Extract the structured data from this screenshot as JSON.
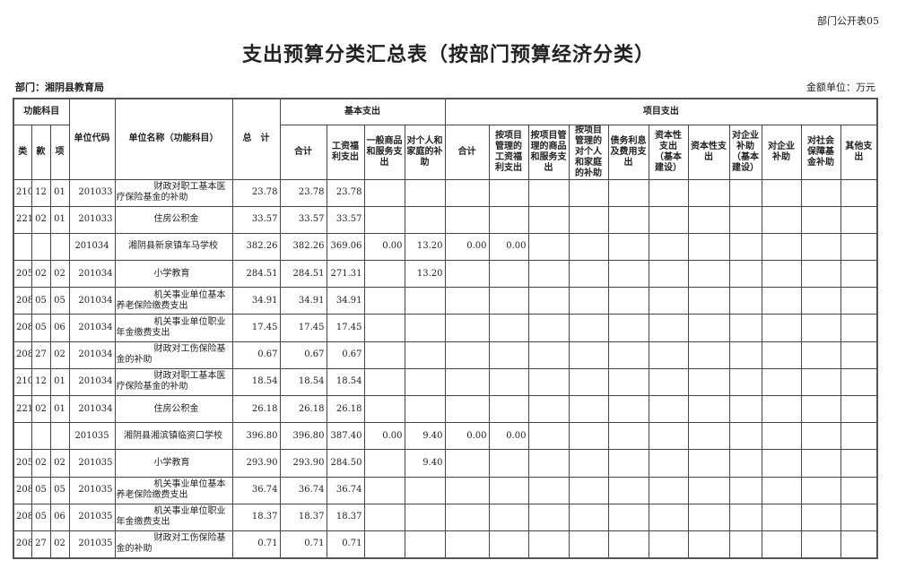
{
  "corner_label": "部门公开表05",
  "title": "支出预算分类汇总表（按部门预算经济分类）",
  "department": "部门：湘阴县教育局",
  "unit": "金额单位：万元",
  "headers": {
    "func_subject": "功能科目",
    "lei": "类",
    "kuan": "款",
    "xiang": "项",
    "unit_code": "单位代码",
    "unit_name": "单位名称（功能科目）",
    "total": "总　计",
    "basic": "基本支出",
    "project": "项目支出",
    "basic_cols": [
      "合计",
      "工资福利支出",
      "一般商品和服务支出",
      "对个人和家庭的补助"
    ],
    "project_cols": [
      "合计",
      "按项目管理的工资福利支出",
      "按项目管理的商品和服务支出",
      "按项目管理的对个人和家庭的补助",
      "债务利息及费用支出",
      "资本性支出（基本建设）",
      "资本性支出",
      "对企业补助（基本建设）",
      "对企业补助",
      "对社会保障基金补助",
      "其他支出"
    ]
  },
  "rows": [
    {
      "lei": "210",
      "kuan": "12",
      "xiang": "01",
      "code": "201033",
      "name": "财政对职工基本医疗保险基金的补助",
      "total": "23.78",
      "b_total": "23.78",
      "b_wage": "23.78",
      "b_goods": "",
      "b_personal": "",
      "p_total": "",
      "p_wage": ""
    },
    {
      "lei": "221",
      "kuan": "02",
      "xiang": "01",
      "code": "201033",
      "name": "住房公积金",
      "total": "33.57",
      "b_total": "33.57",
      "b_wage": "33.57",
      "b_goods": "",
      "b_personal": "",
      "p_total": "",
      "p_wage": ""
    },
    {
      "lei": "",
      "kuan": "",
      "xiang": "",
      "code": "201034",
      "name": "湘阴县新泉镇车马学校",
      "total": "382.26",
      "b_total": "382.26",
      "b_wage": "369.06",
      "b_goods": "0.00",
      "b_personal": "13.20",
      "p_total": "0.00",
      "p_wage": "0.00",
      "subtotal": true
    },
    {
      "lei": "205",
      "kuan": "02",
      "xiang": "02",
      "code": "201034",
      "name": "小学教育",
      "total": "284.51",
      "b_total": "284.51",
      "b_wage": "271.31",
      "b_goods": "",
      "b_personal": "13.20",
      "p_total": "",
      "p_wage": ""
    },
    {
      "lei": "208",
      "kuan": "05",
      "xiang": "05",
      "code": "201034",
      "name": "机关事业单位基本养老保险缴费支出",
      "total": "34.91",
      "b_total": "34.91",
      "b_wage": "34.91",
      "b_goods": "",
      "b_personal": "",
      "p_total": "",
      "p_wage": ""
    },
    {
      "lei": "208",
      "kuan": "05",
      "xiang": "06",
      "code": "201034",
      "name": "机关事业单位职业年金缴费支出",
      "total": "17.45",
      "b_total": "17.45",
      "b_wage": "17.45",
      "b_goods": "",
      "b_personal": "",
      "p_total": "",
      "p_wage": ""
    },
    {
      "lei": "208",
      "kuan": "27",
      "xiang": "02",
      "code": "201034",
      "name": "财政对工伤保险基金的补助",
      "total": "0.67",
      "b_total": "0.67",
      "b_wage": "0.67",
      "b_goods": "",
      "b_personal": "",
      "p_total": "",
      "p_wage": ""
    },
    {
      "lei": "210",
      "kuan": "12",
      "xiang": "01",
      "code": "201034",
      "name": "财政对职工基本医疗保险基金的补助",
      "total": "18.54",
      "b_total": "18.54",
      "b_wage": "18.54",
      "b_goods": "",
      "b_personal": "",
      "p_total": "",
      "p_wage": ""
    },
    {
      "lei": "221",
      "kuan": "02",
      "xiang": "01",
      "code": "201034",
      "name": "住房公积金",
      "total": "26.18",
      "b_total": "26.18",
      "b_wage": "26.18",
      "b_goods": "",
      "b_personal": "",
      "p_total": "",
      "p_wage": ""
    },
    {
      "lei": "",
      "kuan": "",
      "xiang": "",
      "code": "201035",
      "name": "湘阴县湘滨镇临资口学校",
      "total": "396.80",
      "b_total": "396.80",
      "b_wage": "387.40",
      "b_goods": "0.00",
      "b_personal": "9.40",
      "p_total": "0.00",
      "p_wage": "0.00",
      "subtotal": true
    },
    {
      "lei": "205",
      "kuan": "02",
      "xiang": "02",
      "code": "201035",
      "name": "小学教育",
      "total": "293.90",
      "b_total": "293.90",
      "b_wage": "284.50",
      "b_goods": "",
      "b_personal": "9.40",
      "p_total": "",
      "p_wage": ""
    },
    {
      "lei": "208",
      "kuan": "05",
      "xiang": "05",
      "code": "201035",
      "name": "机关事业单位基本养老保险缴费支出",
      "total": "36.74",
      "b_total": "36.74",
      "b_wage": "36.74",
      "b_goods": "",
      "b_personal": "",
      "p_total": "",
      "p_wage": ""
    },
    {
      "lei": "208",
      "kuan": "05",
      "xiang": "06",
      "code": "201035",
      "name": "机关事业单位职业年金缴费支出",
      "total": "18.37",
      "b_total": "18.37",
      "b_wage": "18.37",
      "b_goods": "",
      "b_personal": "",
      "p_total": "",
      "p_wage": ""
    },
    {
      "lei": "208",
      "kuan": "27",
      "xiang": "02",
      "code": "201035",
      "name": "财政对工伤保险基金的补助",
      "total": "0.71",
      "b_total": "0.71",
      "b_wage": "0.71",
      "b_goods": "",
      "b_personal": "",
      "p_total": "",
      "p_wage": ""
    }
  ]
}
